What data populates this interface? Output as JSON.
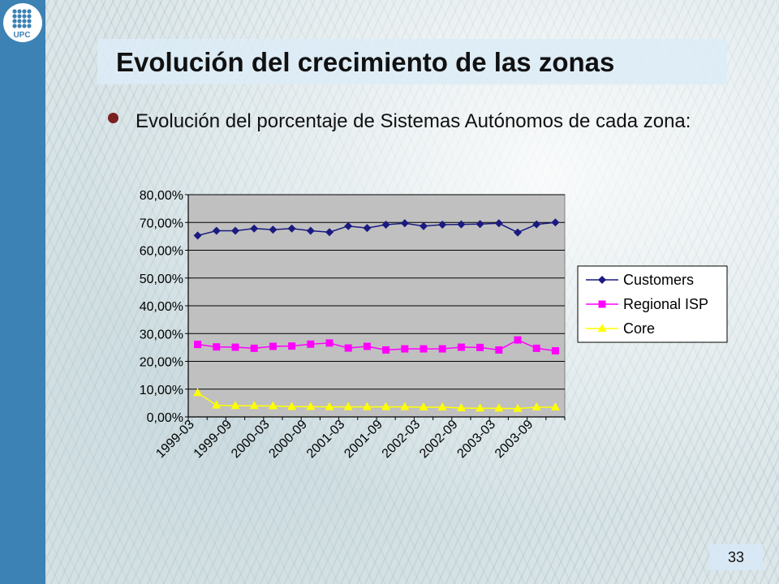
{
  "slide": {
    "title": "Evolución del crecimiento de las zonas",
    "bullet": "Evolución del porcentaje de Sistemas Autónomos de cada zona:",
    "page_number": "33",
    "logo_text": "UPC"
  },
  "colors": {
    "sidebar": "#3c82b5",
    "plot_area": "#c0c0c0",
    "customers": "#1a1a80",
    "regional_isp": "#ff00ff",
    "core": "#ffff00"
  },
  "chart_data": {
    "type": "line",
    "title": "",
    "xlabel": "",
    "ylabel": "",
    "ylim": [
      0,
      80
    ],
    "y_ticks": [
      "0,00%",
      "10,00%",
      "20,00%",
      "30,00%",
      "40,00%",
      "50,00%",
      "60,00%",
      "70,00%",
      "80,00%"
    ],
    "x_tick_labels": [
      "1999-03",
      "1999-09",
      "2000-03",
      "2000-09",
      "2001-03",
      "2001-09",
      "2002-03",
      "2002-09",
      "2003-03",
      "2003-09"
    ],
    "x": [
      "1999-03",
      "1999-06",
      "1999-09",
      "1999-12",
      "2000-03",
      "2000-06",
      "2000-09",
      "2000-12",
      "2001-03",
      "2001-06",
      "2001-09",
      "2001-12",
      "2002-03",
      "2002-06",
      "2002-09",
      "2002-12",
      "2003-03",
      "2003-06",
      "2003-09",
      "2003-12"
    ],
    "grid": true,
    "legend_position": "right",
    "series": [
      {
        "name": "Customers",
        "marker": "diamond",
        "values": [
          65.3,
          67.0,
          67.0,
          67.8,
          67.4,
          67.8,
          67.0,
          66.5,
          68.7,
          68.0,
          69.2,
          69.7,
          68.7,
          69.2,
          69.3,
          69.4,
          69.7,
          66.4,
          69.3,
          70.0
        ]
      },
      {
        "name": "Regional ISP",
        "marker": "square",
        "values": [
          26.1,
          25.2,
          25.1,
          24.7,
          25.4,
          25.5,
          26.2,
          26.6,
          24.8,
          25.4,
          24.1,
          24.5,
          24.5,
          24.5,
          25.1,
          25.0,
          24.1,
          27.7,
          24.7,
          23.8
        ]
      },
      {
        "name": "Core",
        "marker": "triangle",
        "values": [
          8.7,
          4.2,
          4.0,
          4.0,
          3.9,
          3.7,
          3.7,
          3.6,
          3.6,
          3.6,
          3.6,
          3.6,
          3.5,
          3.5,
          3.2,
          3.1,
          3.1,
          3.0,
          3.5,
          3.5
        ]
      }
    ]
  }
}
